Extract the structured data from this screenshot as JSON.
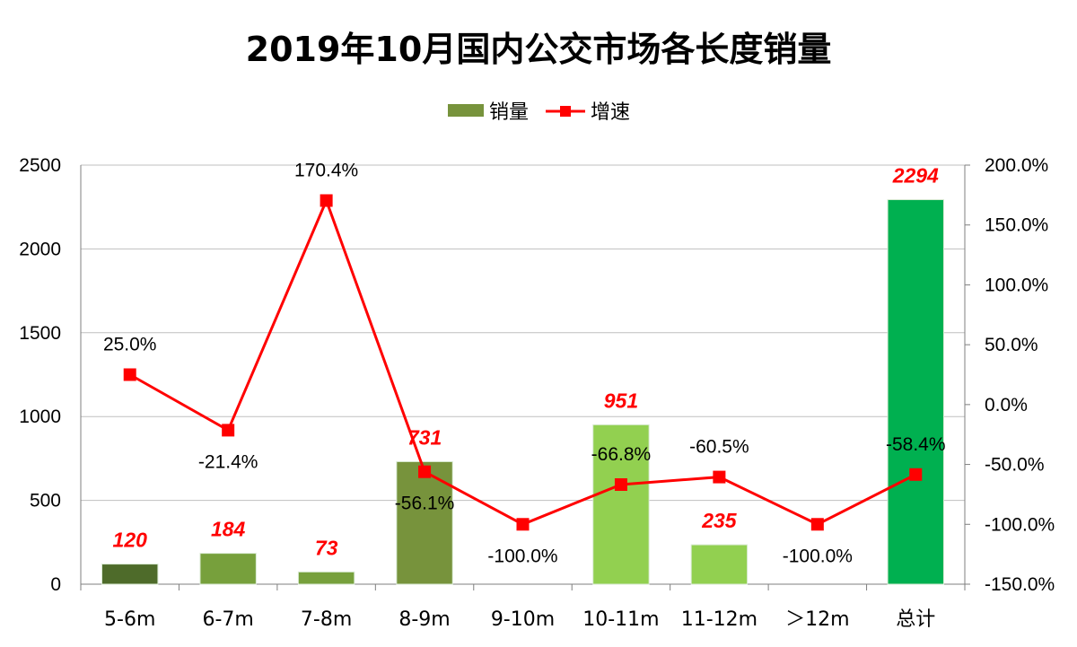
{
  "chart_data": {
    "type": "bar",
    "title": "2019年10月国内公交市场各长度销量",
    "categories": [
      "5-6m",
      "6-7m",
      "7-8m",
      "8-9m",
      "9-10m",
      "10-11m",
      "11-12m",
      "＞12m",
      "总计"
    ],
    "series": [
      {
        "name": "销量",
        "type": "bar",
        "axis": "left",
        "values": [
          120,
          184,
          73,
          731,
          0,
          951,
          235,
          0,
          2294
        ],
        "labels": [
          "120",
          "184",
          "73",
          "731",
          "",
          "951",
          "235",
          "",
          "2294"
        ],
        "colors": [
          "#4e6b2a",
          "#77a03c",
          "#77a03c",
          "#77933c",
          "#92d050",
          "#92d050",
          "#92d050",
          "#92d050",
          "#00b050"
        ]
      },
      {
        "name": "增速",
        "type": "line",
        "axis": "right",
        "color": "#ff0000",
        "values": [
          25.0,
          -21.4,
          170.4,
          -56.1,
          -100.0,
          -66.8,
          -60.5,
          -100.0,
          -58.4
        ],
        "labels": [
          "25.0%",
          "-21.4%",
          "170.4%",
          "-56.1%",
          "-100.0%",
          "-66.8%",
          "-60.5%",
          "-100.0%",
          "-58.4%"
        ]
      }
    ],
    "y_left": {
      "ylim": [
        0,
        2500
      ],
      "ticks": [
        "0",
        "500",
        "1000",
        "1500",
        "2000",
        "2500"
      ]
    },
    "y_right": {
      "ylim": [
        -150,
        200
      ],
      "ticks": [
        "-150.0%",
        "-100.0%",
        "-50.0%",
        "0.0%",
        "50.0%",
        "100.0%",
        "150.0%",
        "200.0%"
      ]
    },
    "legend": {
      "position": "top-center",
      "items": [
        "销量",
        "增速"
      ]
    },
    "grid": true
  }
}
